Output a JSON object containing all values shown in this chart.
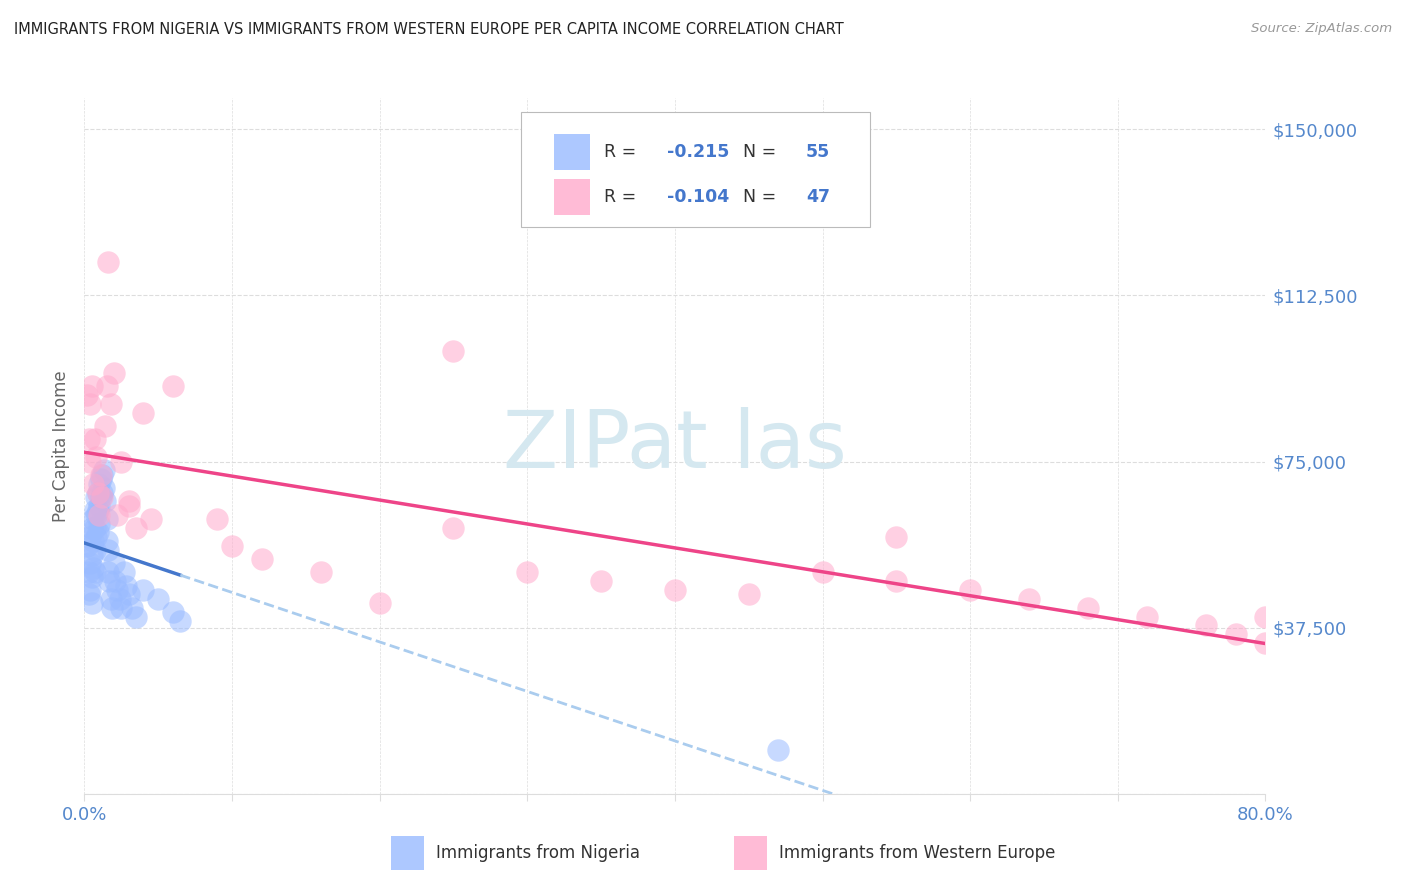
{
  "title": "IMMIGRANTS FROM NIGERIA VS IMMIGRANTS FROM WESTERN EUROPE PER CAPITA INCOME CORRELATION CHART",
  "source": "Source: ZipAtlas.com",
  "ylabel": "Per Capita Income",
  "yticks": [
    0,
    37500,
    75000,
    112500,
    150000
  ],
  "ytick_labels": [
    "",
    "$37,500",
    "$75,000",
    "$112,500",
    "$150,000"
  ],
  "ylim_min": 0,
  "ylim_max": 157000,
  "xlim_min": 0.0,
  "xlim_max": 0.8,
  "xtick_left": "0.0%",
  "xtick_right": "80.0%",
  "legend_label1": "Immigrants from Nigeria",
  "legend_label2": "Immigrants from Western Europe",
  "R1": "-0.215",
  "N1": "55",
  "R2": "-0.104",
  "N2": "47",
  "color_nigeria": "#99BBFF",
  "color_western_europe": "#FFAACC",
  "color_nigeria_line": "#4477CC",
  "color_western_europe_line": "#EE4488",
  "color_nigeria_dashed": "#AACCEE",
  "color_watermark": "#D5E8F0",
  "color_title": "#222222",
  "color_source": "#999999",
  "color_tick_label": "#5588CC",
  "color_grid": "#DDDDDD",
  "color_ylabel": "#666666",
  "color_legend_text_dark": "#333333",
  "color_legend_val": "#4477CC",
  "bg_color": "#FFFFFF",
  "nigeria_x": [
    0.002,
    0.003,
    0.003,
    0.004,
    0.004,
    0.004,
    0.005,
    0.005,
    0.005,
    0.005,
    0.006,
    0.006,
    0.006,
    0.007,
    0.007,
    0.007,
    0.007,
    0.008,
    0.008,
    0.008,
    0.009,
    0.009,
    0.009,
    0.01,
    0.01,
    0.01,
    0.011,
    0.011,
    0.012,
    0.012,
    0.013,
    0.013,
    0.014,
    0.015,
    0.015,
    0.016,
    0.016,
    0.017,
    0.018,
    0.019,
    0.02,
    0.021,
    0.022,
    0.024,
    0.025,
    0.027,
    0.028,
    0.03,
    0.032,
    0.035,
    0.04,
    0.05,
    0.06,
    0.065,
    0.47
  ],
  "nigeria_y": [
    56000,
    50000,
    45000,
    58000,
    52000,
    46000,
    60000,
    54000,
    49000,
    43000,
    62000,
    57000,
    51000,
    64000,
    60000,
    55000,
    50000,
    67000,
    63000,
    58000,
    68000,
    64000,
    59000,
    70000,
    65000,
    61000,
    71000,
    67000,
    72000,
    68000,
    73000,
    69000,
    66000,
    62000,
    57000,
    55000,
    50000,
    48000,
    44000,
    42000,
    52000,
    48000,
    46000,
    44000,
    42000,
    50000,
    47000,
    45000,
    42000,
    40000,
    46000,
    44000,
    41000,
    39000,
    10000
  ],
  "western_europe_x": [
    0.002,
    0.003,
    0.004,
    0.004,
    0.005,
    0.006,
    0.007,
    0.008,
    0.009,
    0.01,
    0.011,
    0.012,
    0.014,
    0.015,
    0.016,
    0.018,
    0.02,
    0.022,
    0.025,
    0.03,
    0.035,
    0.04,
    0.045,
    0.06,
    0.09,
    0.1,
    0.12,
    0.16,
    0.2,
    0.25,
    0.3,
    0.35,
    0.4,
    0.45,
    0.5,
    0.55,
    0.6,
    0.64,
    0.68,
    0.72,
    0.76,
    0.78,
    0.8,
    0.03,
    0.25,
    0.55,
    0.8
  ],
  "western_europe_y": [
    90000,
    80000,
    88000,
    75000,
    92000,
    70000,
    80000,
    76000,
    68000,
    63000,
    72000,
    67000,
    83000,
    92000,
    120000,
    88000,
    95000,
    63000,
    75000,
    66000,
    60000,
    86000,
    62000,
    92000,
    62000,
    56000,
    53000,
    50000,
    43000,
    60000,
    50000,
    48000,
    46000,
    45000,
    50000,
    48000,
    46000,
    44000,
    42000,
    40000,
    38000,
    36000,
    34000,
    65000,
    100000,
    58000,
    40000
  ]
}
